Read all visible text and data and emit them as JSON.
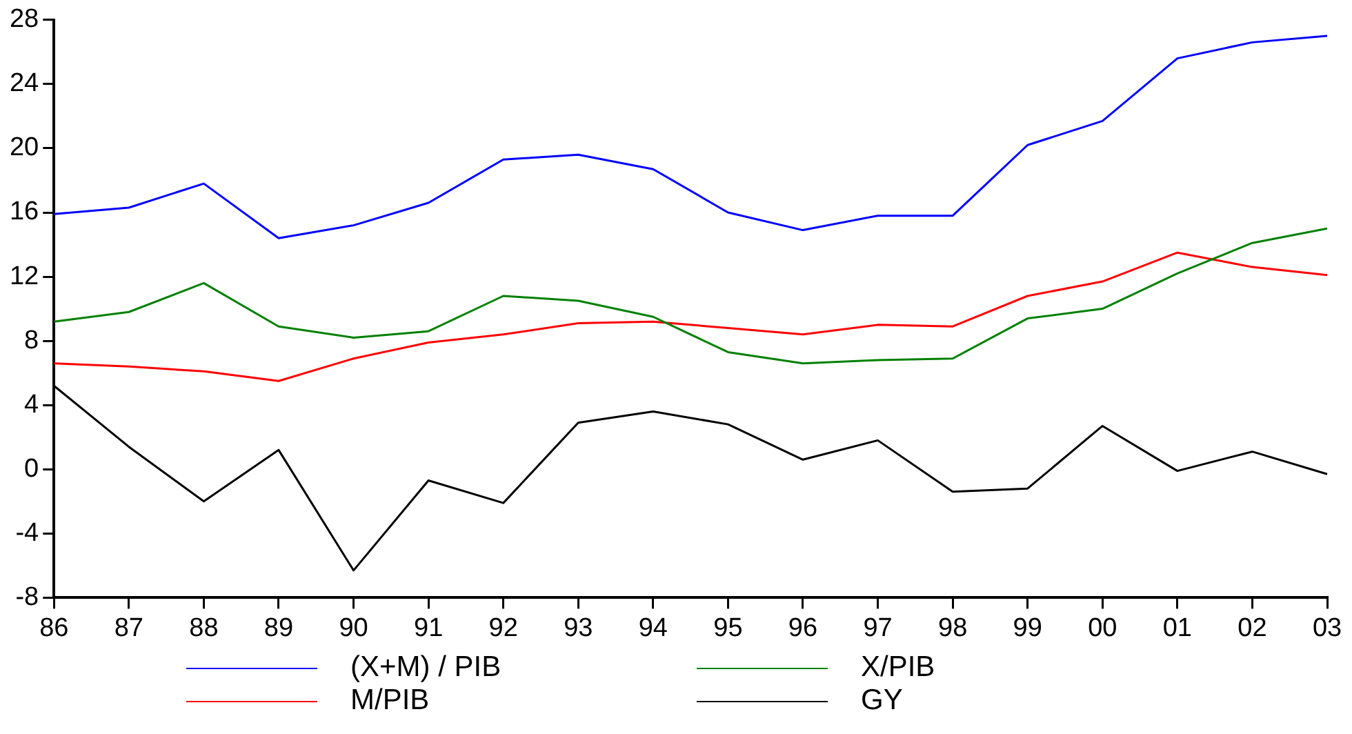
{
  "chart_data": {
    "type": "line",
    "categories": [
      "86",
      "87",
      "88",
      "89",
      "90",
      "91",
      "92",
      "93",
      "94",
      "95",
      "96",
      "97",
      "98",
      "99",
      "00",
      "01",
      "02",
      "03"
    ],
    "series": [
      {
        "name": "(X+M) / PIB",
        "color": "#0000ff",
        "values": [
          15.9,
          16.3,
          17.8,
          14.4,
          15.2,
          16.6,
          19.3,
          19.6,
          18.7,
          16.0,
          14.9,
          15.8,
          15.8,
          20.2,
          21.7,
          25.6,
          26.6,
          27.0
        ]
      },
      {
        "name": "X/PIB",
        "color": "#008000",
        "values": [
          9.2,
          9.8,
          11.6,
          8.9,
          8.2,
          8.6,
          10.8,
          10.5,
          9.5,
          7.3,
          6.6,
          6.8,
          6.9,
          9.4,
          10.0,
          12.2,
          14.1,
          15.0
        ]
      },
      {
        "name": "M/PIB",
        "color": "#ff0000",
        "values": [
          6.6,
          6.4,
          6.1,
          5.5,
          6.9,
          7.9,
          8.4,
          9.1,
          9.2,
          8.8,
          8.4,
          9.0,
          8.9,
          10.8,
          11.7,
          13.5,
          12.6,
          12.1
        ]
      },
      {
        "name": "GY",
        "color": "#000000",
        "values": [
          5.2,
          1.4,
          -2.0,
          1.2,
          -6.3,
          -0.7,
          -2.1,
          2.9,
          3.6,
          2.8,
          0.6,
          1.8,
          -1.4,
          -1.2,
          2.7,
          -0.1,
          1.1,
          -0.3
        ]
      }
    ],
    "ylim": [
      -8,
      28
    ],
    "yticks": [
      -8,
      -4,
      0,
      4,
      8,
      12,
      16,
      20,
      24,
      28
    ],
    "grid": false,
    "legend": "bottom",
    "marker": "none",
    "line_style": "solid"
  }
}
